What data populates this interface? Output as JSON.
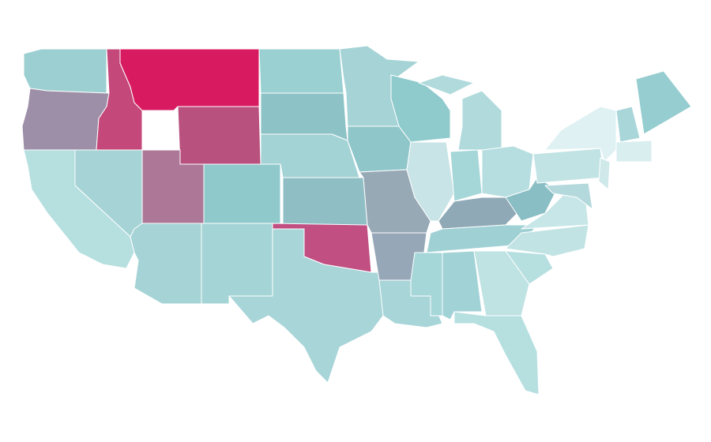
{
  "map": {
    "regions": [
      {
        "color": "#9ccfd2"
      },
      {
        "color": "#9e8fa8"
      },
      {
        "color": "#c4487a"
      },
      {
        "color": "#d81b60"
      },
      {
        "color": "#b9517f"
      },
      {
        "color": "#a6d3d5"
      },
      {
        "color": "#b6dfe0"
      },
      {
        "color": "#ad7898"
      },
      {
        "color": "#a5d3d6"
      },
      {
        "color": "#8fc9cc"
      },
      {
        "color": "#a5d4d6"
      },
      {
        "color": "#9ad0d2"
      },
      {
        "color": "#8dc3c6"
      },
      {
        "color": "#a3d3d5"
      },
      {
        "color": "#8fbfc5"
      },
      {
        "color": "#c14f82"
      },
      {
        "color": "#a8d5d8"
      },
      {
        "color": "#a5d3d6"
      },
      {
        "color": "#8fc6ca"
      },
      {
        "color": "#98a9b6"
      },
      {
        "color": "#96a7b7"
      },
      {
        "color": "#a8d5d8"
      },
      {
        "color": "#8fcacd"
      },
      {
        "color": "#c8e4e6"
      },
      {
        "color": "#b0dadc"
      },
      {
        "color": "#b0dadc"
      },
      {
        "color": "#a5d6d8"
      },
      {
        "color": "#b6dee0"
      },
      {
        "color": "#8fa9b6"
      },
      {
        "color": "#9fd0d4"
      },
      {
        "color": "#a5d6d8"
      },
      {
        "color": "#a0d2d6"
      },
      {
        "color": "#bfe2e3"
      },
      {
        "color": "#b6dfe0"
      },
      {
        "color": "#b6dfe0"
      },
      {
        "color": "#c2e3e4"
      },
      {
        "color": "#c7e6e7"
      },
      {
        "color": "#88bec4"
      },
      {
        "color": "#c2e3e4"
      },
      {
        "color": "#dff1f2"
      },
      {
        "color": "#cfe8ea"
      },
      {
        "color": "#b4d9dc"
      },
      {
        "color": "#a9d6d9"
      },
      {
        "color": "#96cdd0"
      },
      {
        "color": "#d9eeef"
      }
    ]
  }
}
